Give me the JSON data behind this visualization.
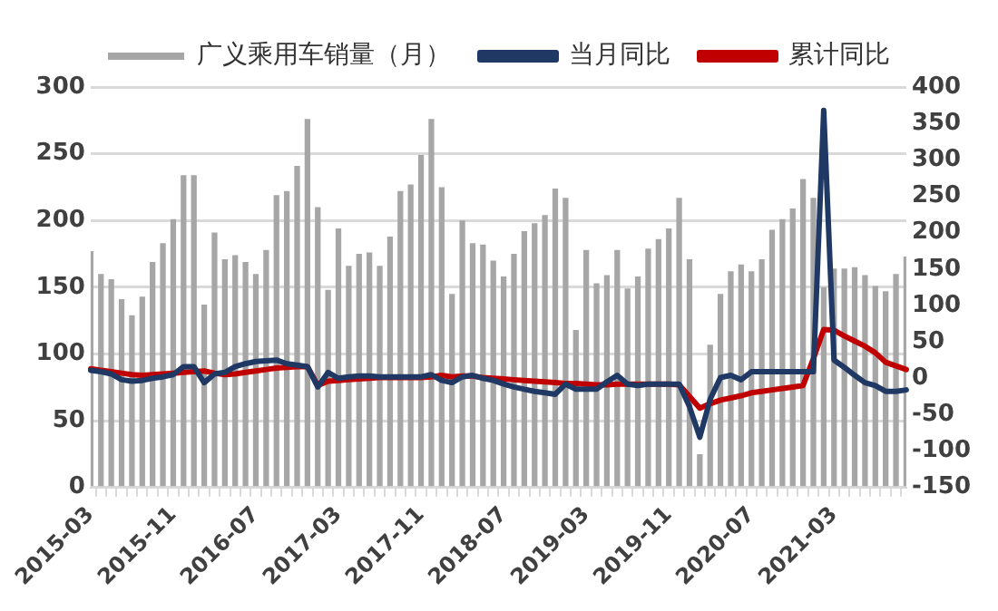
{
  "chart_data": {
    "type": "bar",
    "categories": [
      "2015-03",
      null,
      null,
      null,
      null,
      null,
      null,
      null,
      "2015-11",
      null,
      null,
      null,
      null,
      null,
      null,
      null,
      "2016-07",
      null,
      null,
      null,
      null,
      null,
      null,
      null,
      "2017-03",
      null,
      null,
      null,
      null,
      null,
      null,
      null,
      "2017-11",
      null,
      null,
      null,
      null,
      null,
      null,
      null,
      "2018-07",
      null,
      null,
      null,
      null,
      null,
      null,
      null,
      "2019-03",
      null,
      null,
      null,
      null,
      null,
      null,
      null,
      "2019-11",
      null,
      null,
      null,
      null,
      null,
      null,
      null,
      "2020-07",
      null,
      null,
      null,
      null,
      null,
      null,
      null,
      "2021-03",
      null,
      null,
      null,
      null,
      null,
      null,
      null
    ],
    "series": [
      {
        "name": "广义乘用车销量（月）",
        "axis": "y",
        "color": "#a6a6a6",
        "values": [
          177,
          160,
          156,
          141,
          129,
          143,
          169,
          183,
          201,
          234,
          234,
          137,
          191,
          171,
          174,
          169,
          160,
          178,
          219,
          222,
          241,
          276,
          210,
          148,
          194,
          166,
          175,
          176,
          166,
          188,
          222,
          227,
          249,
          276,
          225,
          145,
          200,
          183,
          182,
          170,
          158,
          175,
          192,
          198,
          204,
          224,
          217,
          118,
          178,
          153,
          159,
          178,
          149,
          158,
          179,
          186,
          194,
          217,
          171,
          25,
          107,
          145,
          162,
          167,
          162,
          171,
          193,
          201,
          209,
          231,
          217,
          150,
          164,
          164,
          165,
          159,
          151,
          147,
          160,
          173
        ]
      },
      {
        "name": "当月同比",
        "type": "line",
        "axis": "y2",
        "color": "#1f3864",
        "values": [
          11,
          9,
          6,
          -2,
          -4,
          -3,
          0,
          2,
          5,
          16,
          16,
          -6,
          6,
          8,
          16,
          20,
          23,
          24,
          25,
          20,
          18,
          16,
          -12,
          8,
          0,
          2,
          3,
          3,
          2,
          2,
          2,
          2,
          2,
          5,
          -3,
          -6,
          2,
          4,
          0,
          -3,
          -8,
          -12,
          -15,
          -18,
          -20,
          -22,
          -8,
          -15,
          -15,
          -15,
          -5,
          4,
          -8,
          -10,
          -8,
          -8,
          -8,
          -8,
          -39,
          -81,
          -29,
          1,
          4,
          -2,
          9,
          9,
          9,
          9,
          9,
          9,
          9,
          368,
          25,
          15,
          4,
          -6,
          -10,
          -18,
          -18,
          -16
        ]
      },
      {
        "name": "累计同比",
        "type": "line",
        "axis": "y2",
        "color": "#c00000",
        "values": [
          13,
          11,
          9,
          7,
          5,
          4,
          5,
          6,
          7,
          8,
          9,
          10,
          7,
          5,
          6,
          8,
          10,
          12,
          14,
          15,
          16,
          16,
          -10,
          -4,
          -3,
          -2,
          -1,
          0,
          1,
          1,
          1,
          1,
          1,
          2,
          4,
          2,
          3,
          3,
          1,
          0,
          -1,
          -2,
          -3,
          -4,
          -5,
          -6,
          -7,
          -7,
          -8,
          -9,
          -9,
          -8,
          -8,
          -8,
          -8,
          -8,
          -8,
          -9,
          -25,
          -41,
          -35,
          -30,
          -27,
          -24,
          -20,
          -18,
          -16,
          -14,
          -12,
          -10,
          27,
          67,
          66,
          58,
          51,
          44,
          35,
          22,
          17,
          12
        ]
      }
    ],
    "ylim": [
      0,
      300
    ],
    "yticks": [
      0,
      50,
      100,
      150,
      200,
      250,
      300
    ],
    "y2lim": [
      -150,
      400
    ],
    "y2ticks": [
      -150,
      -100,
      -50,
      0,
      50,
      100,
      150,
      200,
      250,
      300,
      350,
      400
    ],
    "grid": "y",
    "legend": "top",
    "marker": "none",
    "line_style": "solid"
  }
}
